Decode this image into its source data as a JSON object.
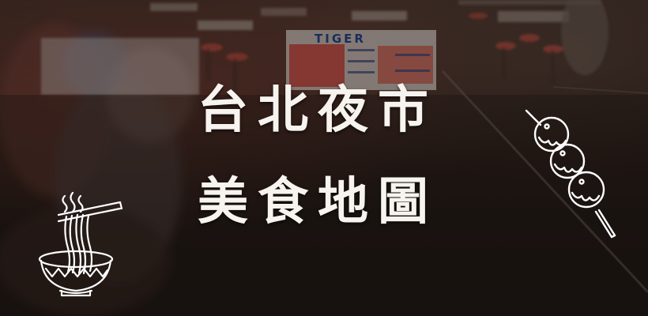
{
  "banner": {
    "title_line_1": "台北夜市",
    "title_line_2": "美食地圖"
  },
  "background": {
    "sign_text": "TIGER",
    "colors": {
      "title": "#f7f3ee",
      "overlay": "#1d1511",
      "illustration_stroke": "#ffffff"
    }
  },
  "icons": {
    "left": "noodle-bowl-icon",
    "right": "meatball-skewer-icon"
  }
}
